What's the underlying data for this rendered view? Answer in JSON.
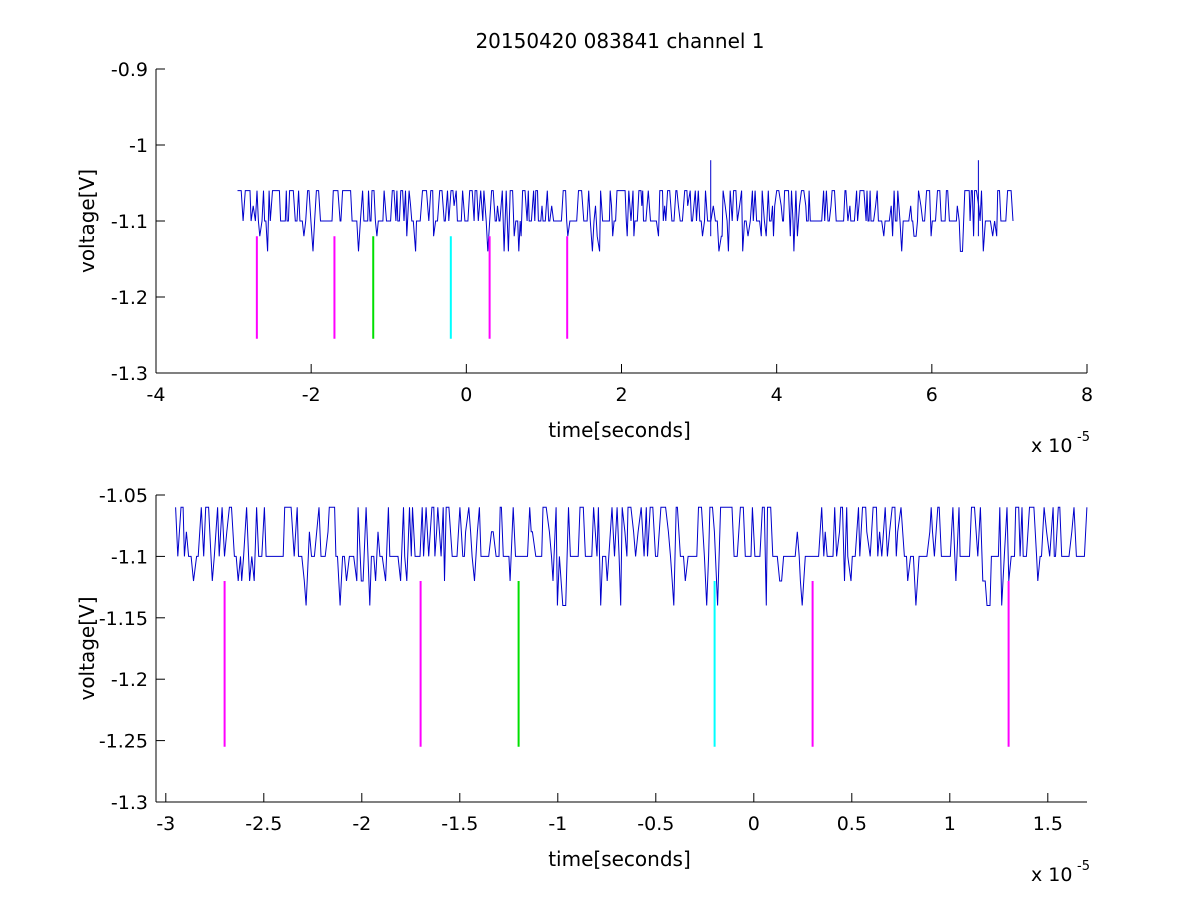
{
  "title": "20150420 083841 channel 1",
  "colors": {
    "trace": "#0000cc",
    "marker_magenta": "#ff00ff",
    "marker_green": "#00e000",
    "marker_cyan": "#00ffff",
    "axes": "#000000"
  },
  "chart_data": [
    {
      "type": "line",
      "title": "20150420 083841 channel 1",
      "xlabel": "time[seconds]",
      "ylabel": "voltage[V]",
      "x_exponent_label": "x 10",
      "x_exponent": "-5",
      "xlim": [
        -4,
        8
      ],
      "ylim": [
        -1.3,
        -0.9
      ],
      "xticks": [
        -4,
        -2,
        0,
        2,
        4,
        6,
        8
      ],
      "xtick_labels": [
        "-4",
        "-2",
        "0",
        "2",
        "4",
        "6",
        "8"
      ],
      "yticks": [
        -1.3,
        -1.2,
        -1.1,
        -1,
        -0.9
      ],
      "ytick_labels": [
        "-1.3",
        "-1.2",
        "-1.1",
        "-1",
        "-0.9"
      ],
      "grid": false,
      "series": [
        {
          "color": "#0000cc",
          "x_range": [
            -2.95,
            7.05
          ],
          "levels": [
            -1.14,
            -1.12,
            -1.1,
            -1.08,
            -1.06
          ],
          "spikes": [
            {
              "x": 3.15,
              "y": -1.02
            },
            {
              "x": 6.6,
              "y": -1.02
            }
          ]
        }
      ],
      "markers": [
        {
          "x": -2.7,
          "y_top": -1.12,
          "y_bottom": -1.255,
          "color": "#ff00ff"
        },
        {
          "x": -1.7,
          "y_top": -1.12,
          "y_bottom": -1.255,
          "color": "#ff00ff"
        },
        {
          "x": -1.2,
          "y_top": -1.12,
          "y_bottom": -1.255,
          "color": "#00e000"
        },
        {
          "x": -0.2,
          "y_top": -1.12,
          "y_bottom": -1.255,
          "color": "#00ffff"
        },
        {
          "x": 0.3,
          "y_top": -1.12,
          "y_bottom": -1.255,
          "color": "#ff00ff"
        },
        {
          "x": 1.3,
          "y_top": -1.12,
          "y_bottom": -1.255,
          "color": "#ff00ff"
        }
      ]
    },
    {
      "type": "line",
      "xlabel": "time[seconds]",
      "ylabel": "voltage[V]",
      "x_exponent_label": "x 10",
      "x_exponent": "-5",
      "xlim": [
        -3.05,
        1.7
      ],
      "ylim": [
        -1.3,
        -1.05
      ],
      "xticks": [
        -3,
        -2.5,
        -2,
        -1.5,
        -1,
        -0.5,
        0,
        0.5,
        1,
        1.5
      ],
      "xtick_labels": [
        "-3",
        "-2.5",
        "-2",
        "-1.5",
        "-1",
        "-0.5",
        "0",
        "0.5",
        "1",
        "1.5"
      ],
      "yticks": [
        -1.3,
        -1.25,
        -1.2,
        -1.15,
        -1.1,
        -1.05
      ],
      "ytick_labels": [
        "-1.3",
        "-1.25",
        "-1.2",
        "-1.15",
        "-1.1",
        "-1.05"
      ],
      "grid": false,
      "series": [
        {
          "color": "#0000cc",
          "x_range": [
            -2.95,
            1.7
          ],
          "levels": [
            -1.14,
            -1.12,
            -1.1,
            -1.08,
            -1.06
          ],
          "spikes": []
        }
      ],
      "markers": [
        {
          "x": -2.7,
          "y_top": -1.12,
          "y_bottom": -1.255,
          "color": "#ff00ff"
        },
        {
          "x": -1.7,
          "y_top": -1.12,
          "y_bottom": -1.255,
          "color": "#ff00ff"
        },
        {
          "x": -1.2,
          "y_top": -1.12,
          "y_bottom": -1.255,
          "color": "#00e000"
        },
        {
          "x": -0.2,
          "y_top": -1.12,
          "y_bottom": -1.255,
          "color": "#00ffff"
        },
        {
          "x": 0.3,
          "y_top": -1.12,
          "y_bottom": -1.255,
          "color": "#ff00ff"
        },
        {
          "x": 1.3,
          "y_top": -1.12,
          "y_bottom": -1.255,
          "color": "#ff00ff"
        }
      ]
    }
  ]
}
